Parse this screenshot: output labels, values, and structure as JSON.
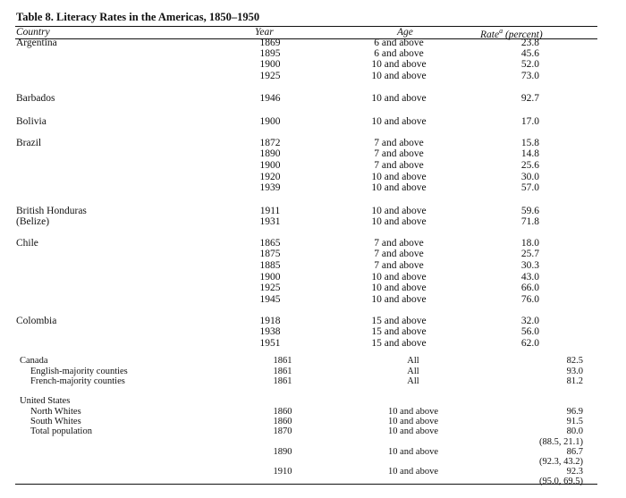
{
  "title": "Table 8. Literacy Rates in the Americas, 1850–1950",
  "headers": {
    "country": "Country",
    "year": "Year",
    "age": "Age",
    "rate_main": "Rate",
    "rate_sup": "a",
    "rate_tail": " (percent)"
  },
  "rows": [
    {
      "country": "Argentina",
      "year": "1869",
      "age": "6 and above",
      "rate": "23.8"
    },
    {
      "country": "",
      "year": "1895",
      "age": "6 and above",
      "rate": "45.6"
    },
    {
      "country": "",
      "year": "1900",
      "age": "10 and above",
      "rate": "52.0"
    },
    {
      "country": "",
      "year": "1925",
      "age": "10 and above",
      "rate": "73.0"
    },
    {
      "country": "Barbados",
      "year": "1946",
      "age": "10 and above",
      "rate": "92.7"
    },
    {
      "country": "Bolivia",
      "year": "1900",
      "age": "10 and above",
      "rate": "17.0"
    },
    {
      "country": "Brazil",
      "year": "1872",
      "age": "7 and above",
      "rate": "15.8"
    },
    {
      "country": "",
      "year": "1890",
      "age": "7 and above",
      "rate": "14.8"
    },
    {
      "country": "",
      "year": "1900",
      "age": "7 and above",
      "rate": "25.6"
    },
    {
      "country": "",
      "year": "1920",
      "age": "10 and above",
      "rate": "30.0"
    },
    {
      "country": "",
      "year": "1939",
      "age": "10 and above",
      "rate": "57.0"
    },
    {
      "country": "British Honduras",
      "year": "1911",
      "age": "10 and above",
      "rate": "59.6"
    },
    {
      "country": "(Belize)",
      "year": "1931",
      "age": "10 and above",
      "rate": "71.8"
    },
    {
      "country": "Chile",
      "year": "1865",
      "age": "7 and above",
      "rate": "18.0"
    },
    {
      "country": "",
      "year": "1875",
      "age": "7 and above",
      "rate": "25.7"
    },
    {
      "country": "",
      "year": "1885",
      "age": "7 and above",
      "rate": "30.3"
    },
    {
      "country": "",
      "year": "1900",
      "age": "10 and above",
      "rate": "43.0"
    },
    {
      "country": "",
      "year": "1925",
      "age": "10 and above",
      "rate": "66.0"
    },
    {
      "country": "",
      "year": "1945",
      "age": "10 and above",
      "rate": "76.0"
    },
    {
      "country": "Colombia",
      "year": "1918",
      "age": "15 and above",
      "rate": "32.0"
    },
    {
      "country": "",
      "year": "1938",
      "age": "15 and above",
      "rate": "56.0"
    },
    {
      "country": "",
      "year": "1951",
      "age": "15 and above",
      "rate": "62.0"
    },
    {
      "country": "Canada",
      "year": "1861",
      "age": "All",
      "rate": "82.5"
    },
    {
      "country": "English-majority counties",
      "year": "1861",
      "age": "All",
      "rate": "93.0"
    },
    {
      "country": "French-majority counties",
      "year": "1861",
      "age": "All",
      "rate": "81.2"
    },
    {
      "country": "United States",
      "year": "",
      "age": "",
      "rate": ""
    },
    {
      "country": "North Whites",
      "year": "1860",
      "age": "10 and above",
      "rate": "96.9"
    },
    {
      "country": "South Whites",
      "year": "1860",
      "age": "10 and above",
      "rate": "91.5"
    },
    {
      "country": "Total population",
      "year": "1870",
      "age": "10 and above",
      "rate": "80.0"
    },
    {
      "country": "",
      "year": "",
      "age": "",
      "rate": "(88.5, 21.1)"
    },
    {
      "country": "",
      "year": "1890",
      "age": "10 and above",
      "rate": "86.7"
    },
    {
      "country": "",
      "year": "",
      "age": "",
      "rate": "(92.3, 43.2)"
    },
    {
      "country": "",
      "year": "1910",
      "age": "10 and above",
      "rate": "92.3"
    },
    {
      "country": "",
      "year": "",
      "age": "",
      "rate": "(95.0, 69.5)"
    }
  ]
}
